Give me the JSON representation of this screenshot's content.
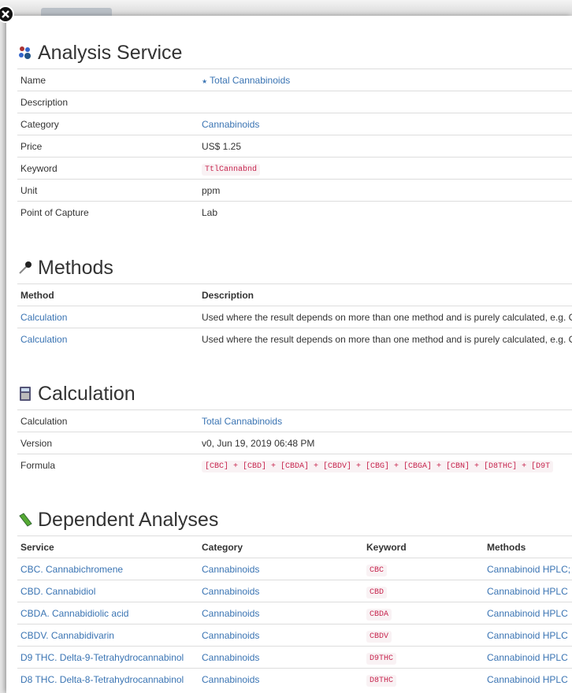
{
  "analysis_service": {
    "heading": "Analysis Service",
    "rows": [
      [
        "Name",
        "Total Cannabinoids"
      ],
      [
        "Description"
      ],
      [
        "Category",
        "Cannabinoids"
      ],
      [
        "Price",
        "US$ 1.25"
      ],
      [
        "Keyword",
        "TtlCannabnd"
      ],
      [
        "Unit",
        "ppm"
      ],
      [
        "Point of Capture",
        "Lab"
      ]
    ]
  },
  "methods": {
    "heading": "Methods",
    "columns": [
      "Method",
      "Description"
    ],
    "rows": [
      [
        "Calculation",
        "Used where the result depends on more than one method and is purely calculated, e.g. C"
      ],
      [
        "Calculation",
        "Used where the result depends on more than one method and is purely calculated, e.g. C"
      ]
    ]
  },
  "calculation": {
    "heading": "Calculation",
    "rows": [
      [
        "Calculation",
        "Total Cannabinoids"
      ],
      [
        "Version",
        "v0, Jun 19, 2019 06:48 PM"
      ],
      [
        "Formula",
        "[CBC] + [CBD] + [CBDA] + [CBDV] + [CBG] + [CBGA] + [CBN] + [D8THC] + [D9T"
      ]
    ]
  },
  "dependent_analyses": {
    "heading": "Dependent Analyses",
    "columns": [
      "Service",
      "Category",
      "Keyword",
      "Methods"
    ],
    "rows": [
      [
        "CBC. Cannabichromene",
        "Cannabinoids",
        "CBC",
        "Cannabinoid HPLC;"
      ],
      [
        "CBD. Cannabidiol",
        "Cannabinoids",
        "CBD",
        "Cannabinoid HPLC"
      ],
      [
        "CBDA. Cannabidiolic acid",
        "Cannabinoids",
        "CBDA",
        "Cannabinoid HPLC"
      ],
      [
        "CBDV. Cannabidivarin",
        "Cannabinoids",
        "CBDV",
        "Cannabinoid HPLC"
      ],
      [
        "D9 THC. Delta-9-Tetrahydrocannabinol",
        "Cannabinoids",
        "D9THC",
        "Cannabinoid HPLC"
      ],
      [
        "D8 THC. Delta-8-Tetrahydrocannabinol",
        "Cannabinoids",
        "D8THC",
        "Cannabinoid HPLC"
      ]
    ]
  }
}
